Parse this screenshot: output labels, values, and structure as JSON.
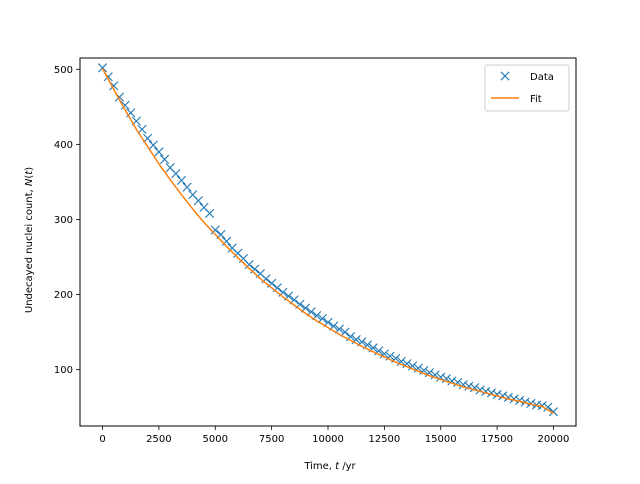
{
  "chart_data": {
    "type": "scatter",
    "title": "",
    "xlabel_main": "Time, ",
    "xlabel_var": "t",
    "xlabel_unit": " /yr",
    "ylabel_main": "Undecayed nuclei count, ",
    "ylabel_var": "N",
    "ylabel_paren_open": "(",
    "ylabel_paren_var": "t",
    "ylabel_paren_close": ")",
    "xlim": [
      -1000,
      21000
    ],
    "ylim": [
      25,
      515
    ],
    "x_ticks": [
      0,
      2500,
      5000,
      7500,
      10000,
      12500,
      15000,
      17500,
      20000
    ],
    "x_tick_labels": [
      "0",
      "2500",
      "5000",
      "7500",
      "10000",
      "12500",
      "15000",
      "17500",
      "20000"
    ],
    "y_ticks": [
      100,
      200,
      300,
      400,
      500
    ],
    "y_tick_labels": [
      "100",
      "200",
      "300",
      "400",
      "500"
    ],
    "grid": false,
    "legend_position": "top-right",
    "series": [
      {
        "name": "Data",
        "marker": "x",
        "color": "#1f77b4",
        "x": [
          0,
          250,
          500,
          750,
          1000,
          1250,
          1500,
          1750,
          2000,
          2250,
          2500,
          2750,
          3000,
          3250,
          3500,
          3750,
          4000,
          4250,
          4500,
          4750,
          5000,
          5250,
          5500,
          5750,
          6000,
          6250,
          6500,
          6750,
          7000,
          7250,
          7500,
          7750,
          8000,
          8250,
          8500,
          8750,
          9000,
          9250,
          9500,
          9750,
          10000,
          10250,
          10500,
          10750,
          11000,
          11250,
          11500,
          11750,
          12000,
          12250,
          12500,
          12750,
          13000,
          13250,
          13500,
          13750,
          14000,
          14250,
          14500,
          14750,
          15000,
          15250,
          15500,
          15750,
          16000,
          16250,
          16500,
          16750,
          17000,
          17250,
          17500,
          17750,
          18000,
          18250,
          18500,
          18750,
          19000,
          19250,
          19500,
          19750,
          20000
        ],
        "y": [
          502,
          490,
          478,
          463,
          452,
          442,
          431,
          420,
          408,
          399,
          390,
          380,
          369,
          361,
          352,
          343,
          333,
          325,
          316,
          308,
          286,
          280,
          271,
          262,
          255,
          248,
          240,
          234,
          228,
          221,
          215,
          209,
          203,
          198,
          193,
          187,
          182,
          177,
          172,
          168,
          163,
          158,
          154,
          150,
          144,
          140,
          137,
          133,
          129,
          125,
          121,
          118,
          115,
          111,
          108,
          105,
          102,
          99,
          96,
          93,
          90,
          88,
          85,
          83,
          80,
          78,
          76,
          73,
          71,
          69,
          67,
          65,
          63,
          61,
          59,
          57,
          55,
          53,
          52,
          50,
          44
        ]
      },
      {
        "name": "Fit",
        "marker": "line",
        "color": "#ff7f0e",
        "x": [
          0,
          500,
          1000,
          1500,
          2000,
          2500,
          3000,
          3500,
          4000,
          4500,
          5000,
          5500,
          6000,
          6500,
          7000,
          7500,
          8000,
          8500,
          9000,
          9500,
          10000,
          10500,
          11000,
          11500,
          12000,
          12500,
          13000,
          13500,
          14000,
          14500,
          15000,
          15500,
          16000,
          16500,
          17000,
          17500,
          18000,
          18500,
          19000,
          19500,
          20000
        ],
        "y": [
          501,
          473,
          446,
          420,
          397,
          374,
          353,
          333,
          314,
          296,
          280,
          264,
          249,
          235,
          221,
          209,
          197,
          186,
          175,
          165,
          156,
          147,
          139,
          131,
          124,
          117,
          110,
          104,
          98,
          92,
          87,
          82,
          77,
          73,
          69,
          65,
          61,
          58,
          54,
          51,
          42
        ]
      }
    ]
  }
}
